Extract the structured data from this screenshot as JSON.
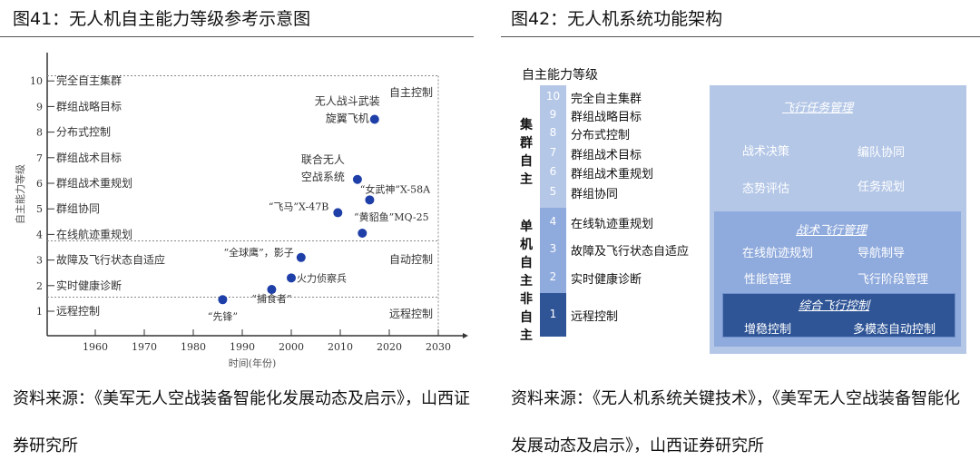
{
  "left": {
    "title": "图41：无人机自主能力等级参考示意图",
    "source": "资料来源：《美军无人空战装备智能化发展动态及启示》，山西证券研究所",
    "chart_data": {
      "type": "scatter",
      "xlabel": "时间(年份)",
      "ylabel": "自主能力等级",
      "xlim": [
        1950,
        2030
      ],
      "ylim": [
        0,
        10
      ],
      "x_ticks": [
        "1960",
        "1970",
        "1980",
        "1990",
        "2000",
        "2010",
        "2020",
        "2030"
      ],
      "y_ticks": [
        "1",
        "2",
        "3",
        "4",
        "5",
        "6",
        "7",
        "8",
        "9",
        "10"
      ],
      "level_labels": [
        "远程控制",
        "实时健康诊断",
        "故障及飞行状态自适应",
        "在线航迹重规划",
        "群组协同",
        "群组战术重规划",
        "群组战术目标",
        "分布式控制",
        "群组战略目标",
        "完全自主集群"
      ],
      "regions": [
        {
          "label": "自主控制",
          "from": 3.75,
          "to": 10.2
        },
        {
          "label": "自动控制",
          "from": 1.55,
          "to": 3.75
        },
        {
          "label": "远程控制",
          "from": 0,
          "to": 1.55
        }
      ],
      "points": [
        {
          "label": "“先锋”",
          "x": 1986,
          "y": 1.45
        },
        {
          "label": "“捕食者”",
          "x": 1996,
          "y": 1.85
        },
        {
          "label": "火力侦察兵",
          "x": 2000,
          "y": 2.3
        },
        {
          "label": "“全球鹰”，影子",
          "x": 2002,
          "y": 3.1
        },
        {
          "label": "“飞马”X-47B",
          "x": 2009.5,
          "y": 4.85
        },
        {
          "label": "“黄貂鱼”MQ-25",
          "x": 2014.5,
          "y": 4.05
        },
        {
          "label": "联合无人空战系统",
          "x": 2013.5,
          "y": 6.15
        },
        {
          "label": "“女武神”X-58A",
          "x": 2016,
          "y": 5.35
        },
        {
          "label": "无人战斗武装旋翼飞机",
          "x": 2017,
          "y": 8.5
        }
      ],
      "point_color": "#1f3fa8",
      "grid": false
    }
  },
  "right": {
    "title": "图42：无人机系统功能架构",
    "source": "资料来源：《无人机系统关键技术》，《美军无人空战装备智能化发展动态及启示》，山西证券研究所",
    "axis_title": "自主能力等级",
    "groups": [
      "集群自主",
      "单机自主",
      "非自主"
    ],
    "levels": [
      {
        "num": "10",
        "label": "完全自主集群"
      },
      {
        "num": "9",
        "label": "群组战略目标"
      },
      {
        "num": "8",
        "label": "分布式控制"
      },
      {
        "num": "7",
        "label": "群组战术目标"
      },
      {
        "num": "6",
        "label": "群组战术重规划"
      },
      {
        "num": "5",
        "label": "群组协同"
      },
      {
        "num": "4",
        "label": "在线轨迹重规划"
      },
      {
        "num": "3",
        "label": "故障及飞行状态自适应"
      },
      {
        "num": "2",
        "label": "实时健康诊断"
      },
      {
        "num": "1",
        "label": "远程控制"
      }
    ],
    "colors": {
      "light": "#b4c7e7",
      "mid": "#8faadc",
      "dark": "#2f5597"
    },
    "mission": {
      "title": "飞行任务管理",
      "items": [
        "战术决策",
        "编队协同",
        "态势评估",
        "任务规划"
      ]
    },
    "tactical": {
      "title": "战术飞行管理",
      "items": [
        "在线航迹规划",
        "导航制导",
        "性能管理",
        "飞行阶段管理"
      ]
    },
    "control": {
      "title": "综合飞行控制",
      "items": [
        "增稳控制",
        "多模态自动控制"
      ]
    }
  }
}
